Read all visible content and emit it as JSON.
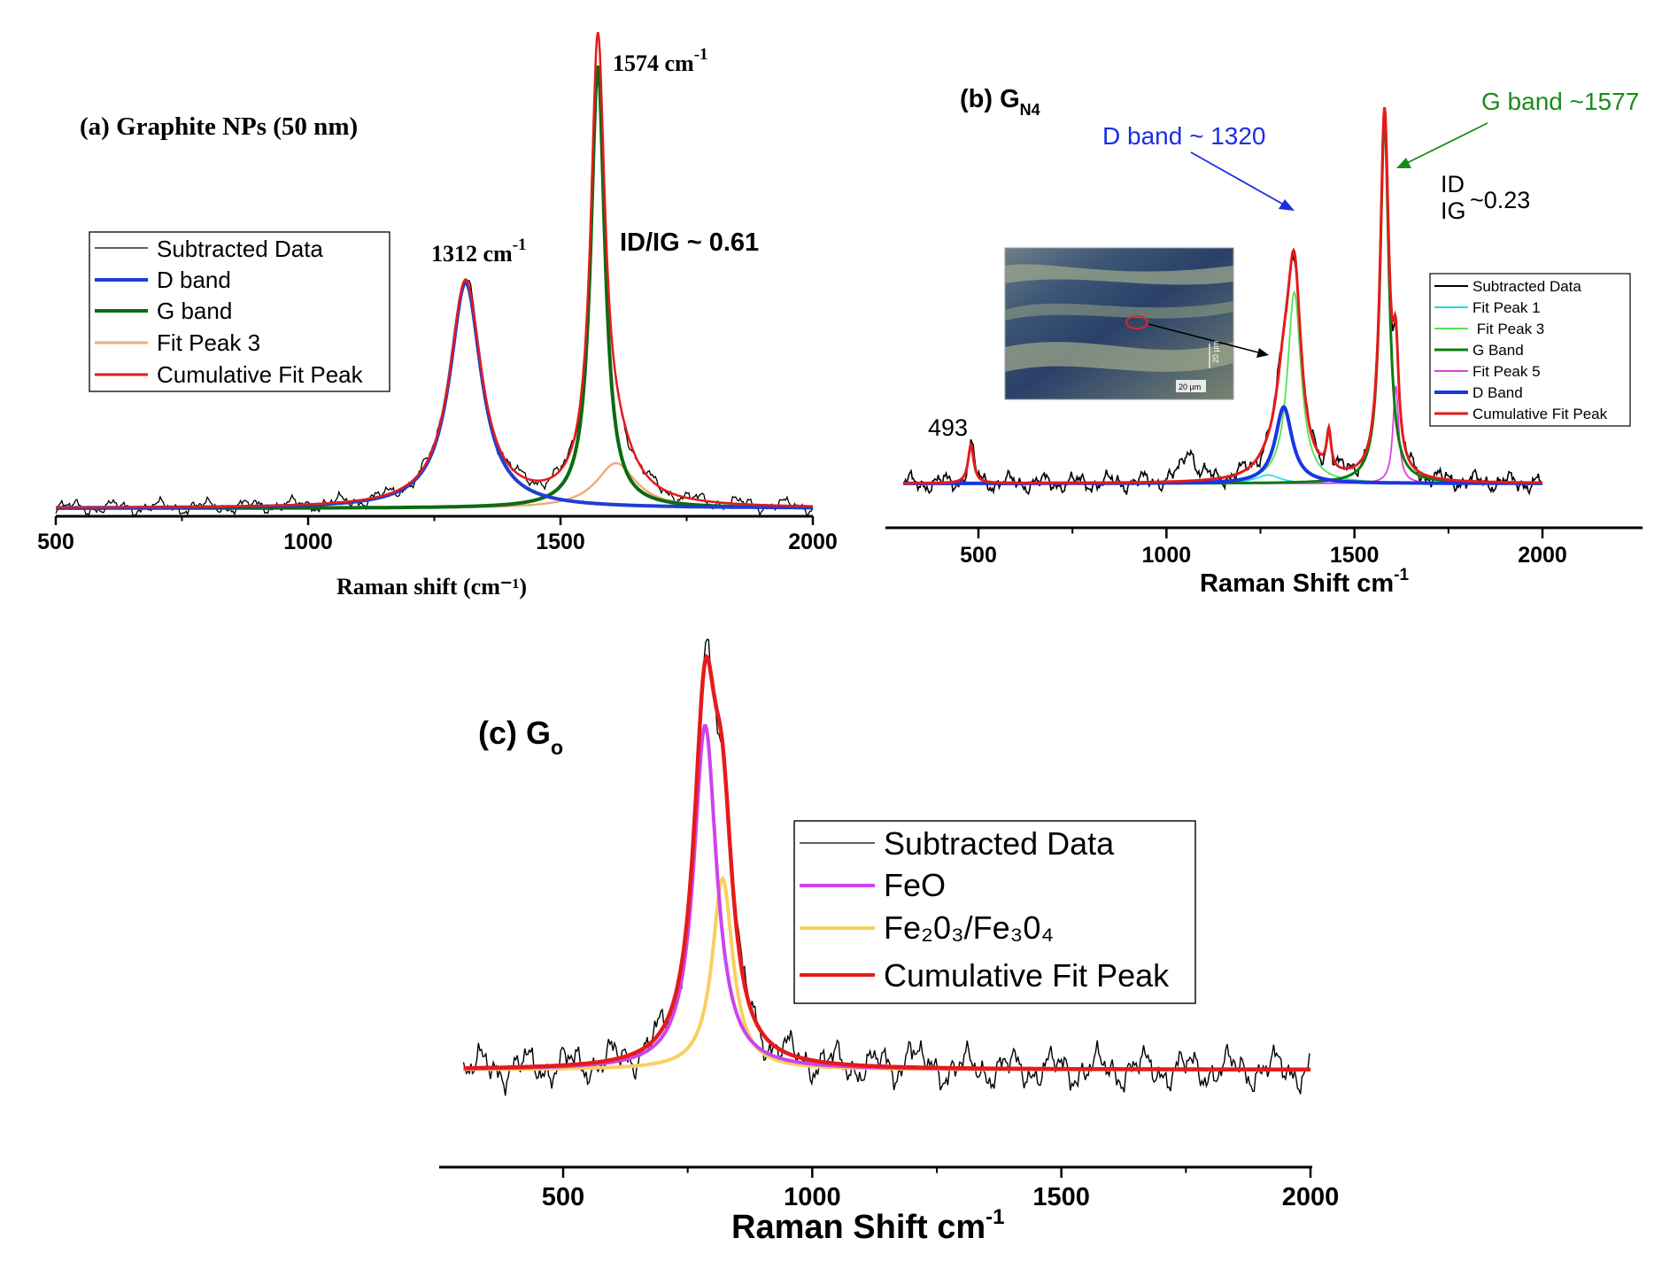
{
  "chart_data": [
    {
      "type": "line",
      "title": "(a) Graphite NPs (50 nm)",
      "xlabel": "Raman shift (cm⁻¹)",
      "ylabel": "",
      "xlim": [
        500,
        2000
      ],
      "xticks": [
        500,
        1000,
        1500,
        2000
      ],
      "annotations": [
        {
          "text": "1574 cm",
          "sup": "-1"
        },
        {
          "text": "1312 cm",
          "sup": "-1"
        },
        {
          "text": "ID/IG ~ 0.61"
        }
      ],
      "peaks": {
        "D band": 1312,
        "G band": 1574,
        "Fit Peak 3": 1610
      },
      "series": [
        {
          "name": "Subtracted Data",
          "color": "#000000",
          "note": "noisy raw spectrum"
        },
        {
          "name": "D band",
          "color": "#1f3fd0",
          "center": 1312,
          "width": 38,
          "amplitude": 0.5
        },
        {
          "name": "G band",
          "color": "#0b6b12",
          "center": 1574,
          "width": 17,
          "amplitude": 0.98
        },
        {
          "name": "Fit Peak 3",
          "color": "#f0aa78",
          "center": 1610,
          "width": 48,
          "amplitude": 0.1
        },
        {
          "name": "Cumulative Fit Peak",
          "color": "#e51b1b"
        }
      ]
    },
    {
      "type": "line",
      "title": "(b) G",
      "title_sub": "N4",
      "xlabel": "Raman Shift cm",
      "xlabel_sup": "-1",
      "xlim": [
        300,
        2000
      ],
      "xticks": [
        500,
        1000,
        1500,
        2000
      ],
      "annotations": [
        {
          "text": "D band ~ 1320",
          "color": "#1c2ee0"
        },
        {
          "text": "G band ~1577",
          "color": "#1a8c1a"
        },
        {
          "text": "ID"
        },
        {
          "text": "IG"
        },
        {
          "text": "~0.23"
        },
        {
          "text": "493"
        }
      ],
      "inset_scale_labels": [
        "20 μm",
        "20 μm"
      ],
      "peaks": {
        "493": 480,
        "D Band": 1312,
        "Fit Peak 3": 1340,
        "extra": 1432,
        "G Band": 1580,
        "Fit Peak 5": 1610
      },
      "series": [
        {
          "name": "Subtracted Data",
          "color": "#000000"
        },
        {
          "name": "Fit Peak 1",
          "color": "#22d8e8"
        },
        {
          "name": " Fit Peak 3",
          "color": "#55e055"
        },
        {
          "name": "G Band",
          "color": "#0b7d12"
        },
        {
          "name": "Fit Peak 5",
          "color": "#e040e0"
        },
        {
          "name": "D Band",
          "color": "#1838e0"
        },
        {
          "name": "Cumulative Fit Peak",
          "color": "#e51b1b"
        }
      ]
    },
    {
      "type": "line",
      "title": "(c) G",
      "title_sub": "o",
      "xlabel": "Raman Shift cm",
      "xlabel_sup": "-1",
      "xlim": [
        300,
        2000
      ],
      "xticks": [
        500,
        1000,
        1500,
        2000
      ],
      "peaks": {
        "FeO": 785,
        "Fe2O3/Fe3O4": 820
      },
      "series": [
        {
          "name": "Subtracted Data",
          "color": "#000000"
        },
        {
          "name": "FeO",
          "color": "#cc44ee"
        },
        {
          "name": "Fe₂0₃/Fe₃0₄",
          "color": "#f8d060"
        },
        {
          "name": "Cumulative Fit Peak",
          "color": "#e51b1b"
        }
      ]
    }
  ]
}
